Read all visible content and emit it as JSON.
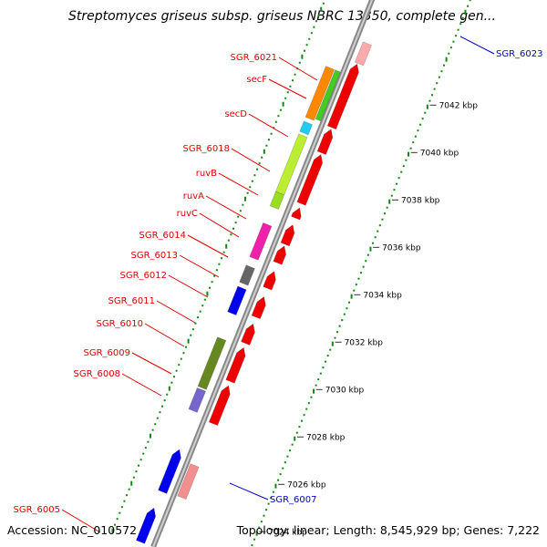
{
  "title": "Streptomyces griseus subsp. griseus NBRC 13350, complete gen...",
  "footer": {
    "accession": "Accession: NC_010572",
    "topology": "Topology: linear; Length: 8,545,929 bp; Genes: 7,222"
  },
  "colors": {
    "red_label": "#e00000",
    "blue_label": "#0000cc"
  },
  "kbp_ticks": [
    "7024 kbp",
    "7026 kbp",
    "7028 kbp",
    "7030 kbp",
    "7032 kbp",
    "7034 kbp",
    "7036 kbp",
    "7038 kbp",
    "7040 kbp",
    "7042 kbp"
  ],
  "gene_labels": [
    {
      "text": "SGR_6023",
      "color": "blue"
    },
    {
      "text": "SGR_6021",
      "color": "red"
    },
    {
      "text": "secF",
      "color": "red"
    },
    {
      "text": "secD",
      "color": "red"
    },
    {
      "text": "SGR_6018",
      "color": "red"
    },
    {
      "text": "ruvB",
      "color": "red"
    },
    {
      "text": "ruvA",
      "color": "red"
    },
    {
      "text": "ruvC",
      "color": "red"
    },
    {
      "text": "SGR_6014",
      "color": "red"
    },
    {
      "text": "SGR_6013",
      "color": "red"
    },
    {
      "text": "SGR_6012",
      "color": "red"
    },
    {
      "text": "SGR_6011",
      "color": "red"
    },
    {
      "text": "SGR_6010",
      "color": "red"
    },
    {
      "text": "SGR_6009",
      "color": "red"
    },
    {
      "text": "SGR_6008",
      "color": "red"
    },
    {
      "text": "SGR_6007",
      "color": "blue"
    },
    {
      "text": "SGR_6005",
      "color": "red"
    }
  ]
}
